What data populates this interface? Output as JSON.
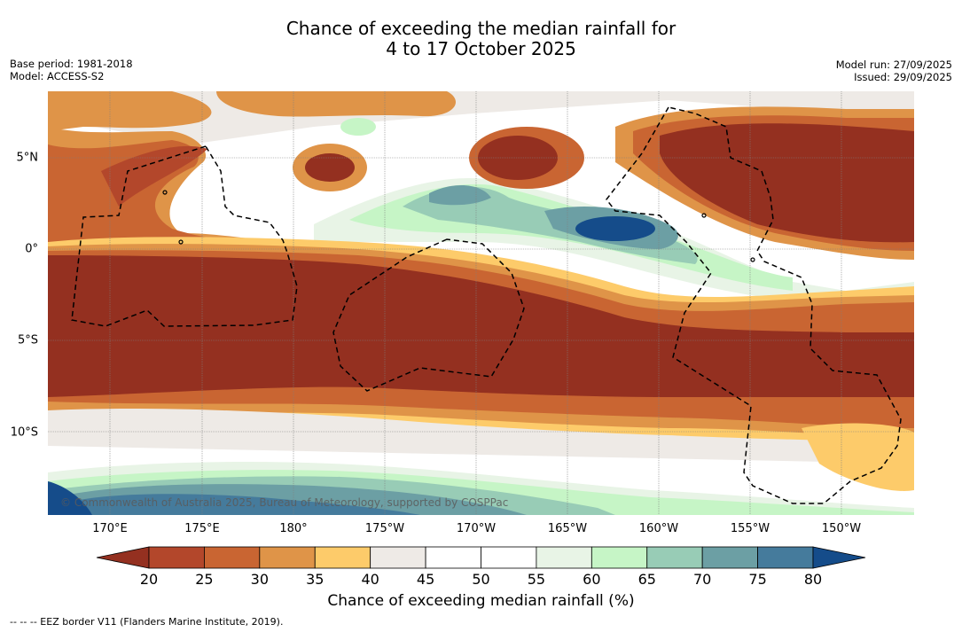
{
  "title_line1": "Chance of exceeding the median rainfall for",
  "title_line2": "4 to 17 October 2025",
  "base_period": "Base period: 1981-2018",
  "model": "Model: ACCESS-S2",
  "model_run": "Model run: 27/09/2025",
  "issued": "Issued: 29/09/2025",
  "copyright": "© Commonwealth of Australia 2025, Bureau of Meteorology, supported by COSPPac",
  "lon_labels": [
    "170°E",
    "175°E",
    "180°",
    "175°W",
    "170°W",
    "165°W",
    "160°W",
    "155°W",
    "150°W"
  ],
  "lat_labels": [
    "5°N",
    "0°",
    "5°S",
    "10°S"
  ],
  "colorbar": {
    "ticks": [
      "20",
      "25",
      "30",
      "35",
      "40",
      "45",
      "50",
      "55",
      "60",
      "65",
      "70",
      "75",
      "80"
    ],
    "colors": [
      "#943020",
      "#b3472b",
      "#c96532",
      "#df9448",
      "#fdcb6a",
      "#eeeae6",
      "#ffffff",
      "#ffffff",
      "#e8f4e6",
      "#c6f5c6",
      "#98ccb6",
      "#6c9fa4",
      "#457b9c",
      "#154c8a"
    ],
    "label": "Chance of exceeding median rainfall (%)"
  },
  "footer": "-- -- -- EEZ border V11 (Flanders Marine Institute, 2019)."
}
